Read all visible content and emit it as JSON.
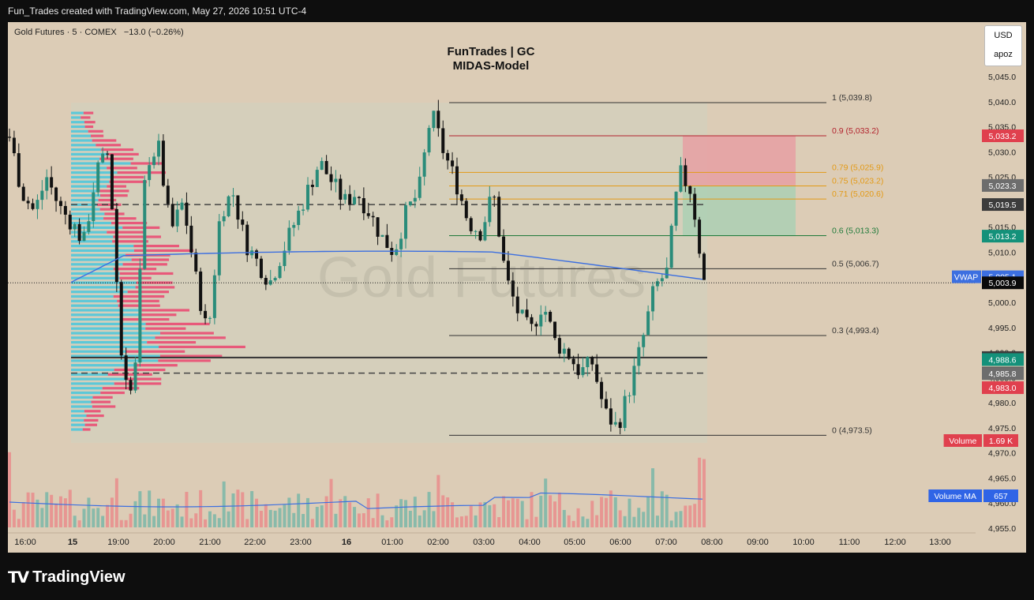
{
  "header": {
    "attribution": "Fun_Trades created with TradingView.com, May 27, 2026 10:51 UTC-4"
  },
  "symbol": {
    "name": "Gold Futures",
    "interval": "5",
    "exchange": "COMEX",
    "change": "−13.0 (−0.26%)"
  },
  "chart_title": {
    "line1": "FunTrades | GC",
    "line2": "MIDAS-Model"
  },
  "watermark": "Gold Futures",
  "currency_box": {
    "currency": "USD",
    "label": "apoz"
  },
  "footer": {
    "brand": "TradingView"
  },
  "colors": {
    "background": "#dcccb6",
    "up": "#2a8c7a",
    "down": "#111111",
    "vwap": "#3c6fe0",
    "profile_red": "#e8597a",
    "profile_blue": "#5cc8d8",
    "fib_red": "#b2222d",
    "fib_orange": "#e39a16",
    "fib_green": "#1f7a3a"
  },
  "chart_data": {
    "type": "candlestick",
    "price_axis": {
      "min": 4955,
      "max": 5045,
      "ticks": [
        "5,045.0",
        "5,040.0",
        "5,035.0",
        "5,030.0",
        "5,025.0",
        "5,020.0",
        "5,015.0",
        "5,010.0",
        "5,005.0",
        "5,000.0",
        "4,995.0",
        "4,990.0",
        "4,985.0",
        "4,980.0",
        "4,975.0",
        "4,970.0",
        "4,965.0",
        "4,960.0",
        "4,955.0"
      ]
    },
    "time_axis": {
      "ticks": [
        "16:00",
        "15",
        "19:00",
        "20:00",
        "21:00",
        "22:00",
        "23:00",
        "16",
        "01:00",
        "02:00",
        "03:00",
        "04:00",
        "05:00",
        "06:00",
        "07:00",
        "08:00",
        "09:00",
        "10:00",
        "11:00",
        "12:00",
        "13:00"
      ],
      "bold": [
        "15",
        "16"
      ]
    },
    "price_path": [
      5033,
      5022,
      5018,
      5025,
      5019,
      5016,
      5012,
      5026,
      5030,
      4990,
      4980,
      5028,
      5031,
      5014,
      5020,
      5005,
      4993,
      5018,
      5022,
      5012,
      5008,
      5004,
      5010,
      5016,
      5022,
      5028,
      5024,
      5020,
      5022,
      5018,
      5013,
      5010,
      5018,
      5022,
      5038,
      5030,
      5024,
      5016,
      5014,
      5022,
      5005,
      4998,
      4994,
      5000,
      4992,
      4990,
      4986,
      4988,
      4978,
      4975,
      4983,
      4992,
      5003,
      5006,
      5026,
      5022,
      5004
    ],
    "fib_levels": [
      {
        "ratio": "1",
        "price": 5039.8,
        "label": "1 (5,039.8)",
        "color": "#333333"
      },
      {
        "ratio": "0.9",
        "price": 5033.2,
        "label": "0.9 (5,033.2)",
        "color": "#b2222d"
      },
      {
        "ratio": "0.79",
        "price": 5025.9,
        "label": "0.79 (5,025.9)",
        "color": "#e39a16"
      },
      {
        "ratio": "0.75",
        "price": 5023.2,
        "label": "0.75 (5,023.2)",
        "color": "#e39a16"
      },
      {
        "ratio": "0.71",
        "price": 5020.6,
        "label": "0.71 (5,020.6)",
        "color": "#e39a16"
      },
      {
        "ratio": "0.6",
        "price": 5013.3,
        "label": "0.6 (5,013.3)",
        "color": "#1f7a3a"
      },
      {
        "ratio": "0.5",
        "price": 5006.7,
        "label": "0.5 (5,006.7)",
        "color": "#333333"
      },
      {
        "ratio": "0.3",
        "price": 4993.4,
        "label": "0.3 (4,993.4)",
        "color": "#333333"
      },
      {
        "ratio": "0",
        "price": 4973.5,
        "label": "0 (4,973.5)",
        "color": "#333333"
      }
    ],
    "horizontal_levels": {
      "vah_dashed": 5019.5,
      "poc_solid": 4989.0,
      "val_dashed": 4985.9
    },
    "trade_box": {
      "stop": 5033.2,
      "entry": 5023.3,
      "target": 5013.2
    },
    "price_labels": [
      {
        "text": "5,033.2",
        "price": 5033.2,
        "bg": "#e0404e",
        "fg": "#ffffff"
      },
      {
        "text": "5,023.3",
        "price": 5023.3,
        "bg": "#6d6d6d",
        "fg": "#ffffff"
      },
      {
        "text": "5,019.5",
        "price": 5019.5,
        "bg": "#3c3c3c",
        "fg": "#ffffff"
      },
      {
        "text": "5,013.2",
        "price": 5013.2,
        "bg": "#14917a",
        "fg": "#ffffff"
      },
      {
        "text": "5,005.1",
        "price": 5005.1,
        "bg": "#3c6fe0",
        "fg": "#ffffff",
        "tag": "VWAP"
      },
      {
        "text": "5,003.9",
        "price": 5003.9,
        "bg": "#0a0a0a",
        "fg": "#ffffff"
      },
      {
        "text": "4,989.0",
        "price": 4989.0,
        "bg": "#3c3c3c",
        "fg": "#ffffff"
      },
      {
        "text": "4,988.6",
        "price": 4988.6,
        "bg": "#14917a",
        "fg": "#ffffff"
      },
      {
        "text": "4,985.9",
        "price": 4985.9,
        "bg": "#3c3c3c",
        "fg": "#ffffff"
      },
      {
        "text": "4,985.8",
        "price": 4985.8,
        "bg": "#6d6d6d",
        "fg": "#ffffff"
      },
      {
        "text": "4,983.0",
        "price": 4983.0,
        "bg": "#e0404e",
        "fg": "#ffffff"
      }
    ],
    "indicator_tags": [
      {
        "label": "Volume",
        "value": "1.69 K",
        "bg": "#e0404e"
      },
      {
        "label": "Volume MA",
        "value": "657",
        "bg": "#2f64e6"
      }
    ]
  }
}
